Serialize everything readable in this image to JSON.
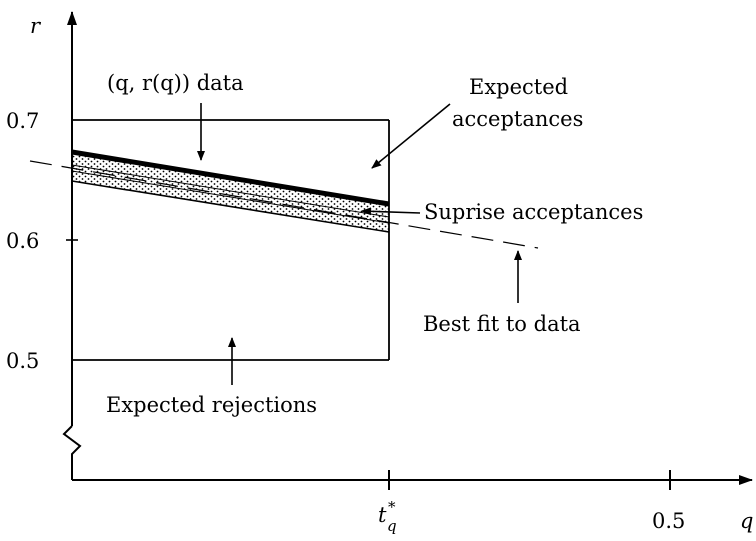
{
  "axes": {
    "y_label": "r",
    "x_label": "q",
    "y_ticks": [
      "0.7",
      "0.6",
      "0.5"
    ],
    "x_ticks": [
      "t",
      "0.5"
    ],
    "x_tick_t_superscript": "*",
    "x_tick_t_subscript": "q"
  },
  "annotations": {
    "data_label": "(q, r(q)) data",
    "expected_acceptances_line1": "Expected",
    "expected_acceptances_line2": "acceptances",
    "surprise_acceptances": "Suprise acceptances",
    "best_fit": "Best fit to data",
    "expected_rejections": "Expected rejections"
  }
}
